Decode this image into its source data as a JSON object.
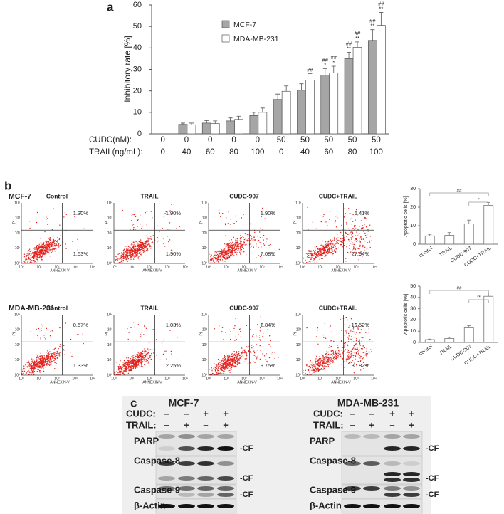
{
  "panel_labels": [
    "a",
    "b",
    "c"
  ],
  "chart_data": [
    {
      "type": "bar",
      "y_label": "Inhibitory rate [%]",
      "category_rows": [
        {
          "name": "CUDC(nM):",
          "labels": [
            0,
            0,
            0,
            0,
            0,
            50,
            50,
            50,
            50,
            50
          ]
        },
        {
          "name": "TRAIL(ng/mL):",
          "labels": [
            0,
            40,
            60,
            80,
            100,
            0,
            40,
            60,
            80,
            100
          ]
        }
      ],
      "series": [
        {
          "name": "MCF-7",
          "color": "#a6a6a6",
          "values": [
            null,
            4.4,
            5,
            6,
            8.5,
            16,
            20.3,
            27.3,
            35,
            43.5
          ],
          "errors": [
            null,
            0.6,
            1.2,
            1.4,
            1.5,
            2.5,
            3,
            3,
            3,
            5
          ],
          "annotations": [
            null,
            null,
            null,
            null,
            null,
            null,
            null,
            [
              "##",
              "*"
            ],
            [
              "##",
              "**"
            ],
            [
              "##",
              "**"
            ]
          ]
        },
        {
          "name": "MDA-MB-231",
          "color": "#ffffff",
          "values": [
            null,
            4.2,
            4.8,
            6.7,
            10,
            19.8,
            25,
            28.3,
            40.3,
            50.5
          ],
          "errors": [
            null,
            0.8,
            1.2,
            1.5,
            2,
            2.5,
            3,
            3.2,
            2.5,
            6
          ],
          "annotations": [
            null,
            null,
            null,
            null,
            null,
            null,
            [
              "##"
            ],
            [
              "##",
              "*"
            ],
            [
              "##",
              "**"
            ],
            [
              "##",
              "**"
            ]
          ]
        }
      ],
      "ylim": [
        0,
        60
      ],
      "yticks": [
        0,
        10,
        20,
        30,
        40,
        50,
        60
      ]
    },
    {
      "type": "bar",
      "y_label": "Apoptotic cells [%]",
      "categories": [
        "control",
        "TRAIL",
        "CUDC-907",
        "CUDC+TRAIL"
      ],
      "values": [
        4.5,
        4.8,
        11,
        21
      ],
      "errors": [
        0.8,
        1.5,
        2,
        1.5
      ],
      "color": "#ffffff",
      "ylim": [
        0,
        30
      ],
      "yticks": [
        0,
        10,
        20,
        30
      ],
      "significance": [
        {
          "label": "##",
          "from": "control",
          "to": "CUDC+TRAIL"
        },
        {
          "label": "*",
          "from": "CUDC-907",
          "to": "CUDC+TRAIL"
        }
      ]
    },
    {
      "type": "bar",
      "y_label": "Apoptotic cells [%]",
      "categories": [
        "control",
        "TRAIL",
        "CUDC-907",
        "CUDC+TRAIL"
      ],
      "values": [
        2.5,
        3.5,
        13,
        41
      ],
      "errors": [
        0.5,
        1,
        2,
        3
      ],
      "color": "#ffffff",
      "ylim": [
        0,
        50
      ],
      "yticks": [
        0,
        10,
        20,
        30,
        40,
        50
      ],
      "significance": [
        {
          "label": "##",
          "from": "control",
          "to": "CUDC+TRAIL"
        },
        {
          "label": "**",
          "from": "CUDC-907",
          "to": "CUDC+TRAIL"
        }
      ]
    }
  ],
  "flow_cytometry": {
    "x_label": "ANNEXIN-V",
    "y_label": "PI",
    "tick_labels": [
      "10⁰",
      "10¹",
      "10²",
      "10³",
      "10⁴"
    ],
    "rows": [
      {
        "name": "MCF-7",
        "plots": [
          {
            "title": "Control",
            "upper_right": "1.30%",
            "lower_right": "1.53%"
          },
          {
            "title": "TRAIL",
            "upper_right": "1.90%",
            "lower_right": "1.90%"
          },
          {
            "title": "CUDC-907",
            "upper_right": "1.90%",
            "lower_right": "7.08%"
          },
          {
            "title": "CUDC+TRAIL",
            "upper_right": "6.41%",
            "lower_right": "27.94%"
          }
        ]
      },
      {
        "name": "MDA-MB-231",
        "plots": [
          {
            "title": "Control",
            "upper_right": "0.57%",
            "lower_right": "1.33%"
          },
          {
            "title": "TRAIL",
            "upper_right": "1.03%",
            "lower_right": "2.25%"
          },
          {
            "title": "CUDC-907",
            "upper_right": "2.84%",
            "lower_right": "9.75%"
          },
          {
            "title": "CUDC+TRAIL",
            "upper_right": "10.52%",
            "lower_right": "30.82%"
          }
        ]
      }
    ]
  },
  "western_blot": {
    "panels": [
      {
        "title": "MCF-7"
      },
      {
        "title": "MDA-MB-231"
      }
    ],
    "treatments": [
      {
        "name": "CUDC:",
        "signs": [
          "–",
          "–",
          "+",
          "+"
        ]
      },
      {
        "name": "TRAIL:",
        "signs": [
          "–",
          "+",
          "–",
          "+"
        ]
      }
    ],
    "proteins": [
      "PARP",
      "Caspase-8",
      "Caspase-9",
      "β-Actin"
    ],
    "cleaved_label": "-CF"
  }
}
